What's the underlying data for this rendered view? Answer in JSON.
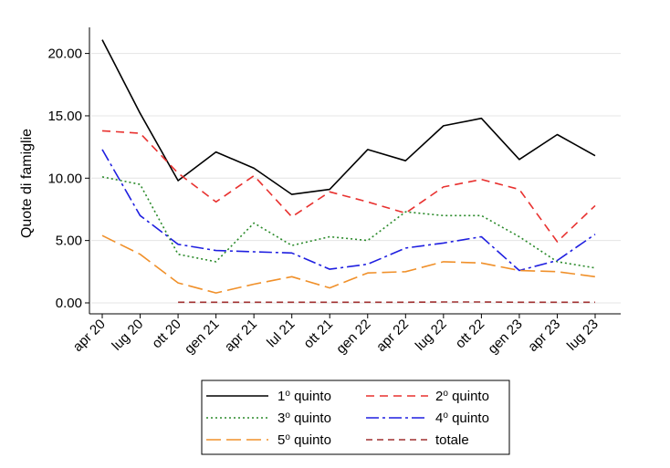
{
  "chart_data": {
    "type": "line",
    "title": "",
    "xlabel": "",
    "ylabel": "Quote di famiglie",
    "ylim": [
      0,
      22
    ],
    "yticks": [
      "0.00",
      "5.00",
      "10.00",
      "15.00",
      "20.00"
    ],
    "ytick_values": [
      0,
      5,
      10,
      15,
      20
    ],
    "categories": [
      "apr 20",
      "lug 20",
      "ott 20",
      "gen 21",
      "apr 21",
      "lul 21",
      "ott 21",
      "gen 22",
      "apr 22",
      "lug 22",
      "ott 22",
      "gen 23",
      "apr 23",
      "lug 23"
    ],
    "grid": true,
    "legend_position": "bottom",
    "series": [
      {
        "name": "1o quinto",
        "base": "1",
        "sup": "o",
        "suffix": " quinto",
        "color": "#000000",
        "dash": "",
        "values": [
          21.1,
          15.2,
          9.8,
          12.1,
          10.8,
          8.7,
          9.1,
          12.3,
          11.4,
          14.2,
          14.8,
          11.5,
          13.5,
          11.8
        ]
      },
      {
        "name": "2o quinto",
        "base": "2",
        "sup": "o",
        "suffix": " quinto",
        "color": "#e8312f",
        "dash": "9,6",
        "values": [
          13.8,
          13.6,
          10.4,
          8.1,
          10.2,
          6.9,
          8.9,
          8.1,
          7.2,
          9.3,
          9.9,
          9.1,
          4.9,
          7.8
        ]
      },
      {
        "name": "3o quinto",
        "base": "3",
        "sup": "o",
        "suffix": " quinto",
        "color": "#2a8a2a",
        "dash": "2,3",
        "values": [
          10.1,
          9.5,
          3.9,
          3.3,
          6.4,
          4.6,
          5.3,
          5.0,
          7.3,
          7.0,
          7.0,
          5.3,
          3.3,
          2.8
        ]
      },
      {
        "name": "4o quinto",
        "base": "4",
        "sup": "o",
        "suffix": " quinto",
        "color": "#1f1fe0",
        "dash": "14,4,3,4",
        "values": [
          12.3,
          7.0,
          4.7,
          4.2,
          4.1,
          4.0,
          2.7,
          3.1,
          4.4,
          4.8,
          5.3,
          2.6,
          3.4,
          5.5
        ]
      },
      {
        "name": "5o quinto",
        "base": "5",
        "sup": "o",
        "suffix": " quinto",
        "color": "#f0902a",
        "dash": "16,6",
        "values": [
          5.4,
          3.9,
          1.6,
          0.8,
          1.5,
          2.1,
          1.2,
          2.4,
          2.5,
          3.3,
          3.2,
          2.6,
          2.5,
          2.1
        ]
      },
      {
        "name": "totale",
        "base": "totale",
        "sup": "",
        "suffix": "",
        "color": "#a03030",
        "dash": "7,5",
        "values": [
          null,
          null,
          0.05,
          0.05,
          0.05,
          0.05,
          0.05,
          0.05,
          0.05,
          0.07,
          0.07,
          0.05,
          0.05,
          0.05
        ]
      }
    ]
  }
}
